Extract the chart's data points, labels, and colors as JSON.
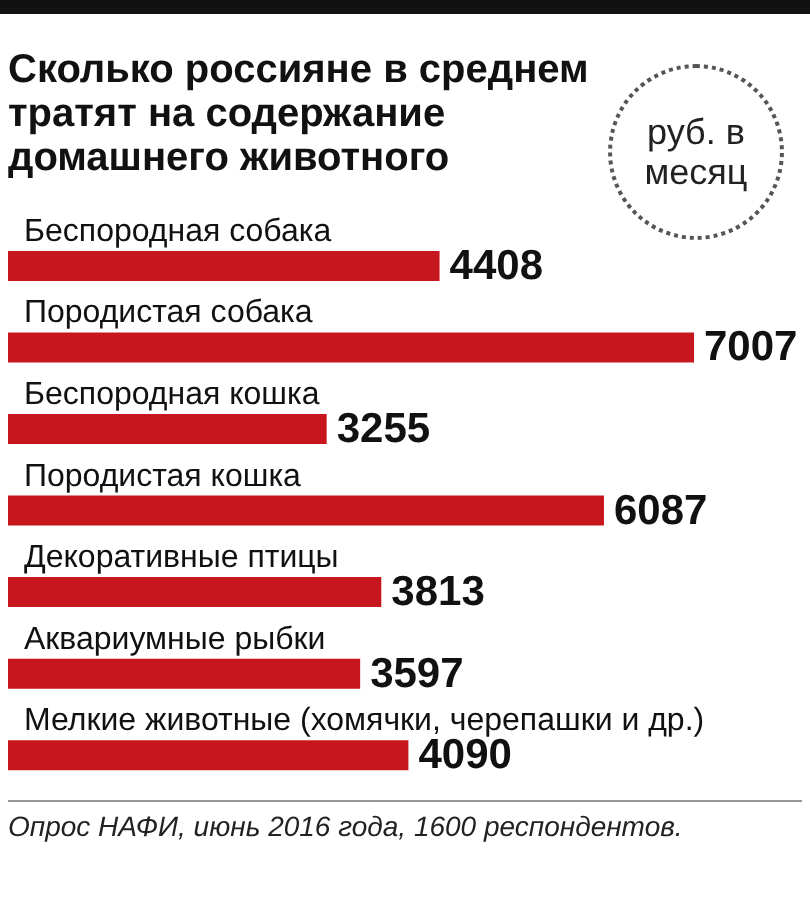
{
  "chart_data": {
    "type": "bar",
    "orientation": "horizontal",
    "title": "Сколько россияне в среднем тратят на содержание домашнего животного",
    "categories": [
      "Беспородная собака",
      "Породистая собака",
      "Беспородная кошка",
      "Породистая кошка",
      "Декоративные птицы",
      "Аквариумные рыбки",
      "Мелкие животные (хомячки, черепашки и др.)"
    ],
    "values": [
      4408,
      7007,
      3255,
      6087,
      3813,
      3597,
      4090
    ],
    "color": "#c8161e",
    "data_labels": true,
    "annotations": [
      "руб. в месяц",
      "Опрос НАФИ, июнь 2016 года, 1600 респондентов."
    ]
  }
}
